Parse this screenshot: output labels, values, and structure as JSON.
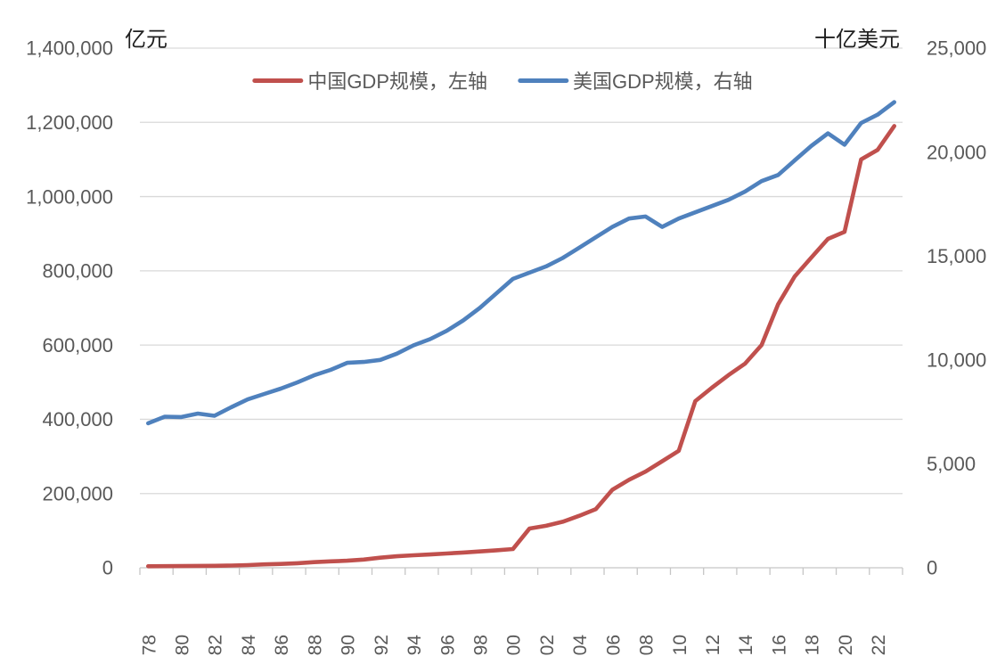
{
  "colors": {
    "china_line": "#C0504D",
    "us_line": "#4F81BD",
    "grid": "#D9D9D9",
    "axis_line": "#C6C6C6",
    "tick_text": "#595959",
    "title_text": "#1F1F1F",
    "background": "#FFFFFF"
  },
  "legend": {
    "items": [
      {
        "label": "中国GDP规模，左轴",
        "color": "#C0504D"
      },
      {
        "label": "美国GDP规模，右轴",
        "color": "#4F81BD"
      }
    ]
  },
  "chart_data": {
    "type": "line",
    "title": "",
    "x": [
      1978,
      1979,
      1980,
      1981,
      1982,
      1983,
      1984,
      1985,
      1986,
      1987,
      1988,
      1989,
      1990,
      1991,
      1992,
      1993,
      1994,
      1995,
      1996,
      1997,
      1998,
      1999,
      2000,
      2001,
      2002,
      2003,
      2004,
      2005,
      2006,
      2007,
      2008,
      2009,
      2010,
      2011,
      2012,
      2013,
      2014,
      2015,
      2016,
      2017,
      2018,
      2019,
      2020,
      2021,
      2022,
      2023
    ],
    "x_tick_labels": [
      "1978",
      "1980",
      "1982",
      "1984",
      "1986",
      "1988",
      "1990",
      "1992",
      "1994",
      "1996",
      "1998",
      "2000",
      "2002",
      "2004",
      "2006",
      "2008",
      "2010",
      "2012",
      "2014",
      "2016",
      "2018",
      "2020",
      "2022"
    ],
    "left_axis": {
      "title": "亿元",
      "min": 0,
      "max": 1400000,
      "step": 200000,
      "tick_labels": [
        "0",
        "200,000",
        "400,000",
        "600,000",
        "800,000",
        "1,000,000",
        "1,200,000",
        "1,400,000"
      ]
    },
    "right_axis": {
      "title": "十亿美元",
      "min": 0,
      "max": 25000,
      "step": 5000,
      "tick_labels": [
        "0",
        "5,000",
        "10,000",
        "15,000",
        "20,000",
        "25,000"
      ]
    },
    "grid": true,
    "legend_position": "top",
    "series": [
      {
        "name": "中国GDP规模，左轴",
        "axis": "left",
        "color": "#C0504D",
        "values": [
          4000,
          4300,
          4600,
          5000,
          5400,
          6000,
          7300,
          9100,
          10400,
          12200,
          15200,
          17200,
          18900,
          22000,
          27200,
          31000,
          33600,
          35800,
          38400,
          41000,
          44000,
          47000,
          50400,
          105700,
          113000,
          124000,
          140000,
          158000,
          210000,
          237000,
          259000,
          287000,
          315000,
          449000,
          485000,
          519000,
          550000,
          600000,
          710000,
          785000,
          836000,
          886000,
          905000,
          1100000,
          1126000,
          1190000
        ]
      },
      {
        "name": "美国GDP规模，右轴",
        "axis": "right",
        "color": "#4F81BD",
        "values": [
          6950,
          7270,
          7250,
          7420,
          7310,
          7720,
          8100,
          8360,
          8620,
          8920,
          9260,
          9520,
          9860,
          9900,
          10000,
          10300,
          10700,
          11000,
          11400,
          11900,
          12500,
          13200,
          13900,
          14200,
          14500,
          14900,
          15400,
          15900,
          16400,
          16800,
          16900,
          16400,
          16800,
          17100,
          17400,
          17700,
          18100,
          18600,
          18900,
          19600,
          20300,
          20900,
          20350,
          21400,
          21800,
          22400
        ]
      }
    ]
  }
}
